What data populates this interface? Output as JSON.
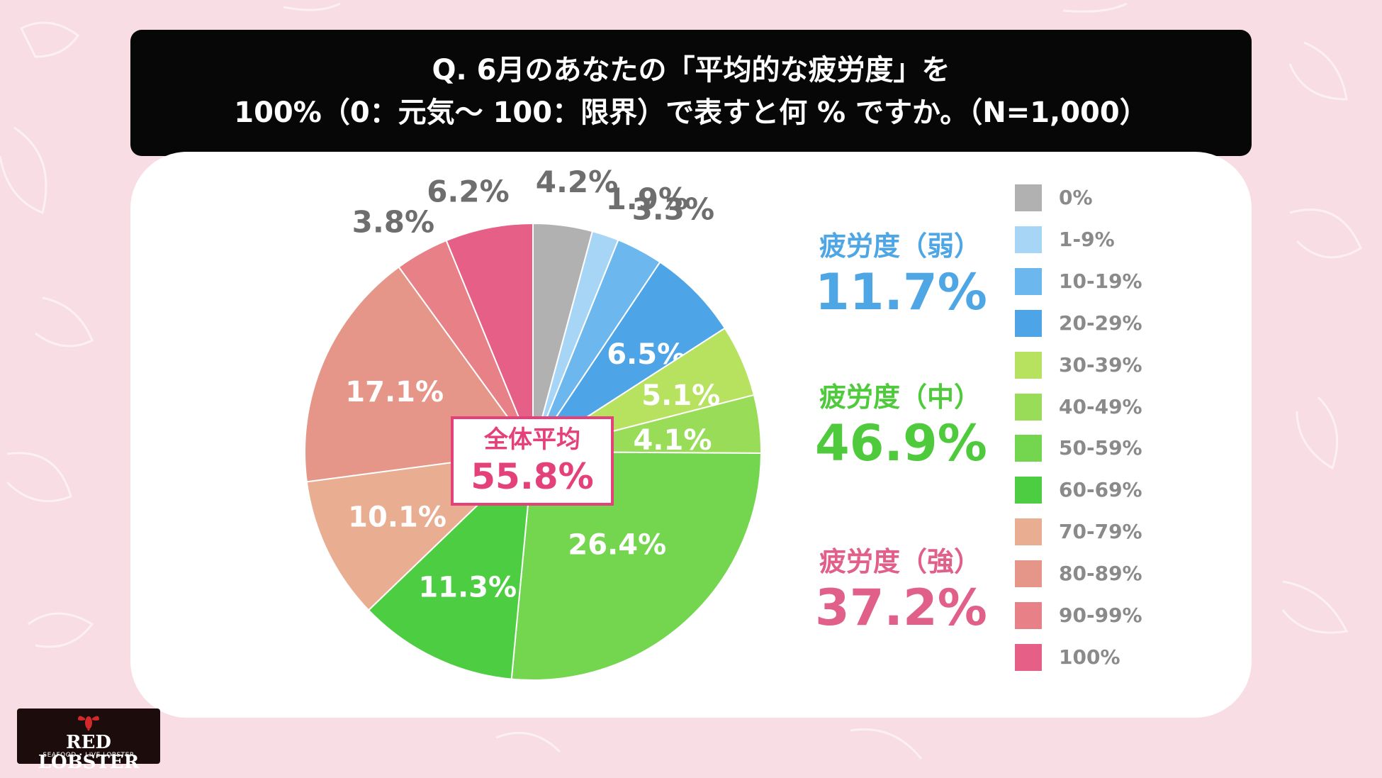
{
  "header": {
    "title_line1": "Q. 6月のあなたの「平均的な疲労度」を",
    "title_line2": "100%（0：元気〜 100：限界）で表すと何 % ですか。（N=1,000）"
  },
  "average": {
    "label": "全体平均",
    "value": "55.8%",
    "color": "#e4407a"
  },
  "groups": [
    {
      "label": "疲労度（弱）",
      "value": "11.7%",
      "color": "#4ea6e4"
    },
    {
      "label": "疲労度（中）",
      "value": "46.9%",
      "color": "#4fca3c"
    },
    {
      "label": "疲労度（強）",
      "value": "37.2%",
      "color": "#e0608a"
    }
  ],
  "chart_data": {
    "type": "pie",
    "categories": [
      "0%",
      "1-9%",
      "10-19%",
      "20-29%",
      "30-39%",
      "40-49%",
      "50-59%",
      "60-69%",
      "70-79%",
      "80-89%",
      "90-99%",
      "100%"
    ],
    "values": [
      4.2,
      1.9,
      3.3,
      6.5,
      5.1,
      4.1,
      26.4,
      11.3,
      10.1,
      17.1,
      3.8,
      6.2
    ],
    "data_labels": [
      "4.2%",
      "1.9%",
      "3.3%",
      "6.5%",
      "5.1%",
      "4.1%",
      "26.4%",
      "11.3%",
      "10.1%",
      "17.1%",
      "3.8%",
      "6.2%"
    ],
    "colors": [
      "#b1b1b1",
      "#a7d5f5",
      "#6bb7ee",
      "#4da4e6",
      "#b7e25f",
      "#98dc58",
      "#74d64f",
      "#4dcd42",
      "#e9ad91",
      "#e69688",
      "#e88088",
      "#e65f86"
    ],
    "label_placement": [
      "outside",
      "outside",
      "outside",
      "inside",
      "inside",
      "inside",
      "inside",
      "inside",
      "inside",
      "inside",
      "outside",
      "outside"
    ],
    "start_angle": "12 o'clock",
    "direction": "clockwise",
    "legend_position": "right"
  },
  "logo": {
    "main": "RED LOBSTER",
    "sub": "SEAFOOD • LIVE LOBSTER"
  }
}
